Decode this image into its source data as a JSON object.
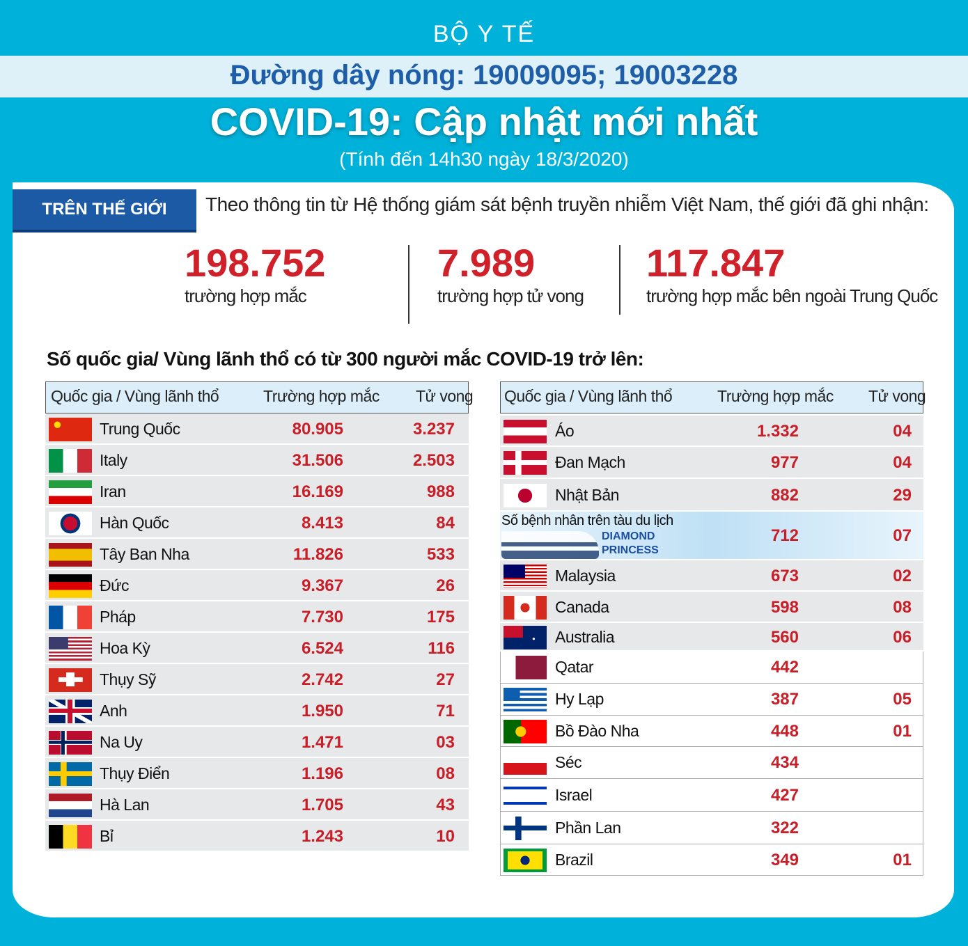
{
  "header": {
    "agency": "BỘ Y TẾ",
    "hotline": "Đường dây nóng: 19009095; 19003228",
    "title": "COVID-19: Cập nhật mới nhất",
    "subtitle": "(Tính đến 14h30 ngày 18/3/2020)"
  },
  "world": {
    "tab": "TRÊN THẾ GIỚI",
    "intro": "Theo thông tin từ Hệ thống giám sát bệnh truyền nhiễm Việt Nam, thế giới đã ghi nhận:",
    "stats": [
      {
        "value": "198.752",
        "label": "trường hợp mắc"
      },
      {
        "value": "7.989",
        "label": "trường hợp tử vong"
      },
      {
        "value": "117.847",
        "label": "trường hợp  mắc bên ngoài Trung Quốc"
      }
    ]
  },
  "countries": {
    "heading": "Số quốc gia/ Vùng lãnh thổ có từ 300 người  mắc COVID-19 trở lên:",
    "tables": [
      {
        "columns": [
          "Quốc gia / Vùng lãnh thổ",
          "Trường hợp mắc",
          "Tử vong"
        ],
        "rows": [
          {
            "name": "Trung Quốc",
            "cases": "80.905",
            "deaths": "3.237"
          },
          {
            "name": "Italy",
            "cases": "31.506",
            "deaths": "2.503"
          },
          {
            "name": "Iran",
            "cases": "16.169",
            "deaths": "988"
          },
          {
            "name": "Hàn Quốc",
            "cases": "8.413",
            "deaths": "84"
          },
          {
            "name": "Tây Ban Nha",
            "cases": "11.826",
            "deaths": "533"
          },
          {
            "name": "Đức",
            "cases": "9.367",
            "deaths": "26"
          },
          {
            "name": "Pháp",
            "cases": "7.730",
            "deaths": "175"
          },
          {
            "name": "Hoa Kỳ",
            "cases": "6.524",
            "deaths": "116"
          },
          {
            "name": "Thụy Sỹ",
            "cases": "2.742",
            "deaths": "27"
          },
          {
            "name": "Anh",
            "cases": "1.950",
            "deaths": "71"
          },
          {
            "name": "Na Uy",
            "cases": "1.471",
            "deaths": "03"
          },
          {
            "name": "Thụy Điển",
            "cases": "1.196",
            "deaths": "08"
          },
          {
            "name": "Hà Lan",
            "cases": "1.705",
            "deaths": "43"
          },
          {
            "name": "Bỉ",
            "cases": "1.243",
            "deaths": "10"
          }
        ]
      },
      {
        "columns": [
          "Quốc gia / Vùng lãnh thổ",
          "Trường hợp mắc",
          "Tử vong"
        ],
        "rows": [
          {
            "name": "Áo",
            "cases": "1.332",
            "deaths": "04"
          },
          {
            "name": "Đan Mạch",
            "cases": "977",
            "deaths": "04"
          },
          {
            "name": "Nhật Bản",
            "cases": "882",
            "deaths": "29"
          },
          {
            "name": "Số bệnh nhân trên tàu du lịch",
            "ship": "DIAMOND PRINCESS",
            "cases": "712",
            "deaths": "07"
          },
          {
            "name": "Malaysia",
            "cases": "673",
            "deaths": "02"
          },
          {
            "name": "Canada",
            "cases": "598",
            "deaths": "08"
          },
          {
            "name": "Australia",
            "cases": "560",
            "deaths": "06"
          },
          {
            "name": "Qatar",
            "cases": "442"
          },
          {
            "name": "Hy Lạp",
            "cases": "387",
            "deaths": "05"
          },
          {
            "name": "Bồ Đào Nha",
            "cases": "448",
            "deaths": "01"
          },
          {
            "name": "Séc",
            "cases": "434"
          },
          {
            "name": "Israel",
            "cases": "427"
          },
          {
            "name": "Phần Lan",
            "cases": "322"
          },
          {
            "name": "Brazil",
            "cases": "349",
            "deaths": "01"
          }
        ]
      }
    ]
  }
}
